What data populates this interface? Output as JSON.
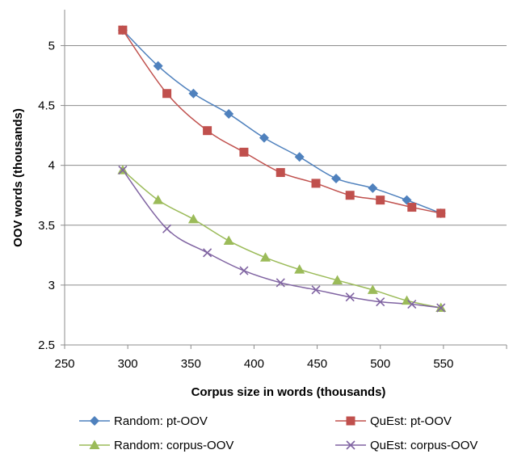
{
  "chart_data": {
    "type": "line",
    "title": "",
    "xlabel": "Corpus size in words (thousands)",
    "ylabel": "OOV words (thousands)",
    "xlim": [
      250,
      600
    ],
    "ylim": [
      2.5,
      5.3
    ],
    "xticks": [
      250,
      300,
      350,
      400,
      450,
      500,
      550
    ],
    "yticks": [
      2.5,
      3,
      3.5,
      4,
      4.5,
      5
    ],
    "x_tick_labels": [
      "250",
      "300",
      "350",
      "400",
      "450",
      "500",
      "550"
    ],
    "y_tick_labels": [
      "2.5",
      "3",
      "3.5",
      "4",
      "4.5",
      "5"
    ],
    "grid": "horizontal",
    "legend_position": "bottom",
    "series": [
      {
        "name": "Random: pt-OOV",
        "color": "#4f81bd",
        "marker": "diamond",
        "x": [
          296,
          324,
          352,
          380,
          408,
          436,
          465,
          494,
          521,
          548
        ],
        "y": [
          5.13,
          4.83,
          4.6,
          4.43,
          4.23,
          4.07,
          3.89,
          3.81,
          3.71,
          3.6
        ]
      },
      {
        "name": "QuEst: pt-OOV",
        "color": "#c0504d",
        "marker": "square",
        "x": [
          296,
          331,
          363,
          392,
          421,
          449,
          476,
          500,
          525,
          548
        ],
        "y": [
          5.13,
          4.6,
          4.29,
          4.11,
          3.94,
          3.85,
          3.75,
          3.71,
          3.65,
          3.6
        ]
      },
      {
        "name": "Random: corpus-OOV",
        "color": "#9bbb59",
        "marker": "triangle",
        "x": [
          296,
          324,
          352,
          380,
          409,
          436,
          466,
          494,
          521,
          548
        ],
        "y": [
          3.96,
          3.71,
          3.55,
          3.37,
          3.23,
          3.13,
          3.04,
          2.96,
          2.87,
          2.81
        ]
      },
      {
        "name": "QuEst: corpus-OOV",
        "color": "#8064a2",
        "marker": "x",
        "x": [
          296,
          331,
          363,
          392,
          421,
          449,
          476,
          500,
          525,
          548
        ],
        "y": [
          3.96,
          3.47,
          3.27,
          3.12,
          3.02,
          2.96,
          2.9,
          2.86,
          2.84,
          2.81
        ]
      }
    ]
  }
}
